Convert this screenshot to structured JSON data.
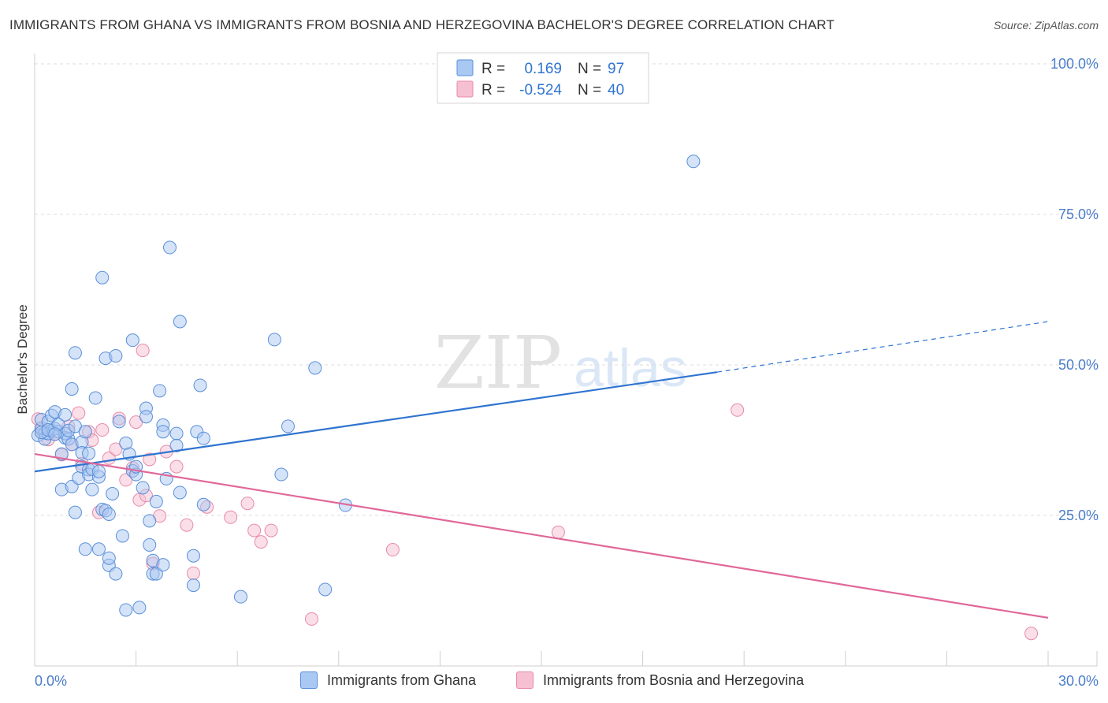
{
  "title": "IMMIGRANTS FROM GHANA VS IMMIGRANTS FROM BOSNIA AND HERZEGOVINA BACHELOR'S DEGREE CORRELATION CHART",
  "source": "Source: ZipAtlas.com",
  "watermark": {
    "zip": "ZIP",
    "atlas": "atlas"
  },
  "stats": {
    "r_label": "R =",
    "n_label": "N =",
    "ghana": {
      "r": "0.169",
      "n": "97"
    },
    "bosnia": {
      "r": "-0.524",
      "n": "40"
    }
  },
  "legend": {
    "ghana": "Immigrants from Ghana",
    "bosnia": "Immigrants from Bosnia and Herzegovina"
  },
  "colors": {
    "ghana_fill": "#a9c8f2",
    "ghana_stroke": "#5b8fd8",
    "ghana_line": "#2f74d0",
    "bosnia_fill": "#f6c0d2",
    "bosnia_stroke": "#e88aaa",
    "bosnia_line": "#e0689a",
    "axis_label": "#4a7cc9"
  },
  "chart_data": {
    "type": "scatter",
    "title": "IMMIGRANTS FROM GHANA VS IMMIGRANTS FROM BOSNIA AND HERZEGOVINA BACHELOR'S DEGREE CORRELATION CHART",
    "xlabel": "",
    "ylabel": "Bachelor's Degree",
    "xlim": [
      0,
      30
    ],
    "ylim": [
      0,
      100
    ],
    "x_tick_labels": [
      "0.0%",
      "30.0%"
    ],
    "y_ticks": [
      25,
      50,
      75,
      100
    ],
    "y_tick_labels": [
      "25.0%",
      "50.0%",
      "75.0%",
      "100.0%"
    ],
    "series": [
      {
        "name": "Immigrants from Ghana",
        "trend": {
          "x0": 0,
          "y0": 32.3,
          "x1": 20.2,
          "y1": 48.8,
          "dash_to_x": 30,
          "dash_to_y": 57.2
        },
        "points": [
          [
            0.1,
            38.3
          ],
          [
            0.2,
            39.5
          ],
          [
            0.2,
            40.9
          ],
          [
            0.3,
            38.7
          ],
          [
            0.3,
            37.7
          ],
          [
            0.4,
            38.6
          ],
          [
            0.4,
            40.6
          ],
          [
            0.5,
            39.1
          ],
          [
            0.5,
            41.6
          ],
          [
            0.6,
            39.4
          ],
          [
            0.6,
            42.2
          ],
          [
            0.7,
            38.9
          ],
          [
            0.7,
            40.1
          ],
          [
            0.8,
            35.2
          ],
          [
            0.8,
            29.3
          ],
          [
            0.9,
            41.7
          ],
          [
            0.9,
            37.9
          ],
          [
            0.9,
            38.6
          ],
          [
            1.0,
            37.7
          ],
          [
            1.0,
            39.1
          ],
          [
            1.1,
            29.8
          ],
          [
            1.1,
            46.0
          ],
          [
            1.1,
            36.8
          ],
          [
            1.2,
            52.0
          ],
          [
            1.2,
            25.5
          ],
          [
            1.2,
            39.8
          ],
          [
            1.3,
            31.2
          ],
          [
            1.4,
            33.1
          ],
          [
            1.4,
            37.2
          ],
          [
            1.4,
            35.4
          ],
          [
            1.5,
            19.4
          ],
          [
            1.5,
            38.9
          ],
          [
            1.6,
            32.6
          ],
          [
            1.6,
            31.8
          ],
          [
            1.6,
            35.3
          ],
          [
            1.7,
            29.3
          ],
          [
            1.7,
            32.7
          ],
          [
            1.8,
            44.5
          ],
          [
            1.9,
            19.4
          ],
          [
            1.9,
            31.4
          ],
          [
            1.9,
            32.3
          ],
          [
            2.0,
            26.0
          ],
          [
            2.0,
            64.5
          ],
          [
            2.1,
            51.1
          ],
          [
            2.1,
            25.8
          ],
          [
            2.2,
            16.7
          ],
          [
            2.2,
            17.9
          ],
          [
            2.2,
            25.2
          ],
          [
            2.3,
            28.6
          ],
          [
            2.4,
            15.3
          ],
          [
            2.4,
            51.5
          ],
          [
            2.5,
            40.6
          ],
          [
            2.6,
            21.6
          ],
          [
            2.7,
            9.3
          ],
          [
            2.7,
            37.0
          ],
          [
            2.8,
            35.2
          ],
          [
            2.9,
            32.4
          ],
          [
            2.9,
            54.1
          ],
          [
            3.0,
            31.8
          ],
          [
            3.0,
            33.1
          ],
          [
            3.1,
            9.7
          ],
          [
            3.2,
            29.6
          ],
          [
            3.3,
            42.8
          ],
          [
            3.3,
            41.4
          ],
          [
            3.4,
            24.1
          ],
          [
            3.4,
            20.1
          ],
          [
            3.5,
            15.3
          ],
          [
            3.5,
            17.5
          ],
          [
            3.6,
            15.3
          ],
          [
            3.6,
            27.3
          ],
          [
            3.7,
            45.7
          ],
          [
            3.8,
            40.0
          ],
          [
            3.8,
            38.9
          ],
          [
            3.8,
            16.8
          ],
          [
            3.9,
            31.1
          ],
          [
            4.0,
            69.5
          ],
          [
            4.2,
            38.6
          ],
          [
            4.2,
            36.6
          ],
          [
            4.3,
            57.2
          ],
          [
            4.3,
            28.8
          ],
          [
            4.7,
            18.3
          ],
          [
            4.7,
            13.4
          ],
          [
            4.8,
            38.9
          ],
          [
            4.9,
            46.6
          ],
          [
            5.0,
            37.8
          ],
          [
            5.0,
            26.8
          ],
          [
            6.1,
            11.5
          ],
          [
            7.1,
            54.2
          ],
          [
            7.3,
            31.8
          ],
          [
            7.5,
            39.8
          ],
          [
            8.3,
            49.5
          ],
          [
            8.6,
            12.7
          ],
          [
            9.2,
            26.7
          ],
          [
            19.5,
            83.8
          ],
          [
            0.2,
            38.8
          ],
          [
            0.4,
            39.2
          ],
          [
            0.6,
            38.5
          ]
        ]
      },
      {
        "name": "Immigrants from Bosnia and Herzegovina",
        "trend": {
          "x0": 0,
          "y0": 35.2,
          "x1": 30,
          "y1": 8.0
        },
        "points": [
          [
            0.1,
            41.0
          ],
          [
            0.2,
            39.2
          ],
          [
            0.4,
            37.6
          ],
          [
            0.6,
            38.5
          ],
          [
            0.8,
            35.1
          ],
          [
            1.0,
            39.8
          ],
          [
            1.1,
            36.8
          ],
          [
            1.3,
            42.0
          ],
          [
            1.4,
            33.6
          ],
          [
            1.6,
            38.9
          ],
          [
            1.7,
            37.5
          ],
          [
            1.9,
            25.5
          ],
          [
            2.0,
            39.2
          ],
          [
            2.2,
            34.5
          ],
          [
            2.4,
            36.0
          ],
          [
            2.5,
            41.1
          ],
          [
            2.7,
            30.9
          ],
          [
            2.9,
            32.9
          ],
          [
            3.0,
            40.5
          ],
          [
            3.1,
            27.6
          ],
          [
            3.2,
            52.4
          ],
          [
            3.3,
            28.3
          ],
          [
            3.4,
            34.3
          ],
          [
            3.5,
            17.0
          ],
          [
            3.7,
            24.9
          ],
          [
            3.9,
            35.6
          ],
          [
            4.2,
            33.1
          ],
          [
            4.5,
            23.4
          ],
          [
            4.7,
            15.4
          ],
          [
            5.1,
            26.4
          ],
          [
            5.8,
            24.7
          ],
          [
            6.3,
            27.0
          ],
          [
            6.5,
            22.5
          ],
          [
            6.7,
            20.6
          ],
          [
            7.0,
            22.5
          ],
          [
            8.2,
            7.8
          ],
          [
            10.6,
            19.3
          ],
          [
            15.5,
            22.2
          ],
          [
            20.8,
            42.5
          ],
          [
            29.5,
            5.4
          ]
        ]
      }
    ]
  }
}
